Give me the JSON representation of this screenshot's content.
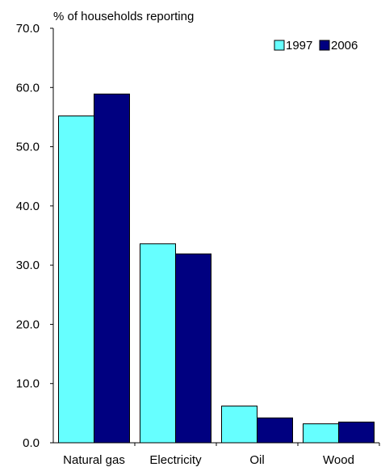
{
  "chart_data": {
    "type": "bar",
    "title": "",
    "ylabel": "% of households reporting",
    "xlabel": "",
    "categories": [
      "Natural gas",
      "Electricity",
      "Oil",
      "Wood"
    ],
    "series": [
      {
        "name": "1997",
        "values": [
          55.2,
          33.6,
          6.2,
          3.2
        ],
        "color": "#66ffff"
      },
      {
        "name": "2006",
        "values": [
          58.9,
          31.9,
          4.2,
          3.5
        ],
        "color": "#000080"
      }
    ],
    "ylim": [
      0,
      70
    ],
    "yticks": [
      "0.0",
      "10.0",
      "20.0",
      "30.0",
      "40.0",
      "50.0",
      "60.0",
      "70.0"
    ],
    "grid": false,
    "legend_position": "top-right"
  }
}
